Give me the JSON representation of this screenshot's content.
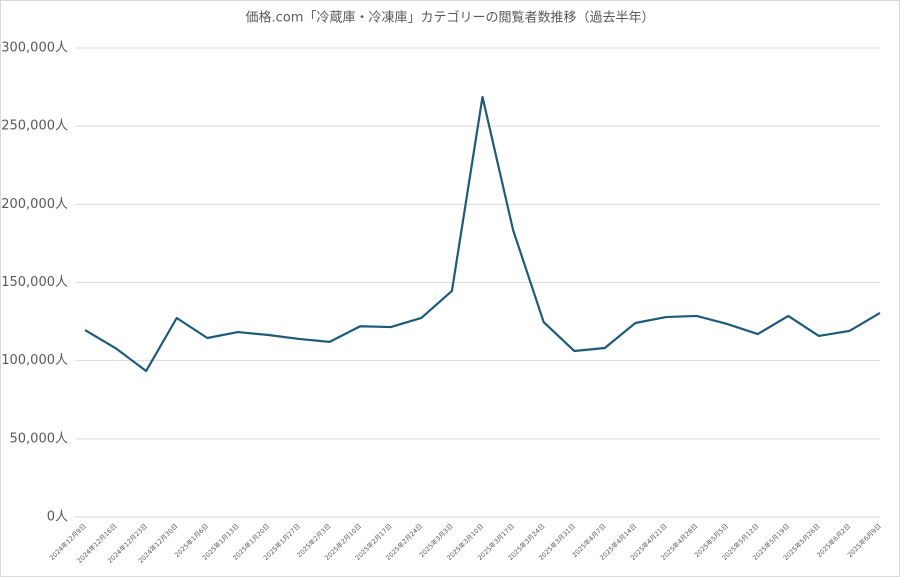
{
  "chart_data": {
    "type": "line",
    "title": "価格.com「冷蔵庫・冷凍庫」カテゴリーの閲覧者数推移（過去半年）",
    "categories": [
      "2024年12月9日",
      "2024年12月16日",
      "2024年12月23日",
      "2024年12月30日",
      "2025年1月6日",
      "2025年1月13日",
      "2025年1月20日",
      "2025年1月27日",
      "2025年2月3日",
      "2025年2月10日",
      "2025年2月17日",
      "2025年2月24日",
      "2025年3月3日",
      "2025年3月10日",
      "2025年3月17日",
      "2025年3月24日",
      "2025年3月31日",
      "2025年4月7日",
      "2025年4月14日",
      "2025年4月21日",
      "2025年4月28日",
      "2025年5月5日",
      "2025年5月12日",
      "2025年5月19日",
      "2025年5月26日",
      "2025年6月2日",
      "2025年6月9日"
    ],
    "values": [
      119600,
      108000,
      93400,
      127300,
      114500,
      118300,
      116400,
      113900,
      112000,
      122000,
      121500,
      127300,
      144600,
      268700,
      183600,
      124700,
      106200,
      108100,
      124100,
      127900,
      128600,
      123500,
      117000,
      128600,
      115800,
      119000,
      130500
    ],
    "color": "#1d5b79",
    "ylim": [
      0,
      300000
    ],
    "yticks": [
      {
        "value": 0,
        "label": "0人"
      },
      {
        "value": 50000,
        "label": "50,000人"
      },
      {
        "value": 100000,
        "label": "100,000人"
      },
      {
        "value": 150000,
        "label": "150,000人"
      },
      {
        "value": 200000,
        "label": "200,000人"
      },
      {
        "value": 250000,
        "label": "250,000人"
      },
      {
        "value": 300000,
        "label": "300,000人"
      }
    ],
    "grid": true
  }
}
